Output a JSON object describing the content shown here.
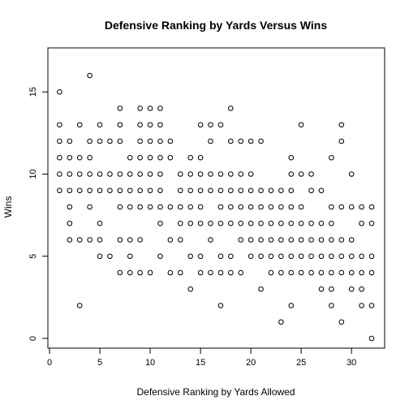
{
  "chart_data": {
    "type": "scatter",
    "title": "Defensive Ranking by Yards Versus Wins",
    "xlabel": "Defensive Ranking by Yards Allowed",
    "ylabel": "Wins",
    "xlim": [
      0,
      32
    ],
    "ylim": [
      0,
      16
    ],
    "x_ticks": [
      0,
      5,
      10,
      15,
      20,
      25,
      30
    ],
    "y_ticks": [
      0,
      5,
      10,
      15
    ],
    "grid": false,
    "points": [
      [
        1,
        15
      ],
      [
        1,
        13
      ],
      [
        1,
        12
      ],
      [
        1,
        11
      ],
      [
        1,
        10
      ],
      [
        1,
        9
      ],
      [
        2,
        12
      ],
      [
        2,
        11
      ],
      [
        2,
        10
      ],
      [
        2,
        9
      ],
      [
        2,
        8
      ],
      [
        2,
        7
      ],
      [
        2,
        6
      ],
      [
        3,
        13
      ],
      [
        3,
        11
      ],
      [
        3,
        10
      ],
      [
        3,
        9
      ],
      [
        3,
        6
      ],
      [
        3,
        2
      ],
      [
        4,
        16
      ],
      [
        4,
        12
      ],
      [
        4,
        11
      ],
      [
        4,
        10
      ],
      [
        4,
        9
      ],
      [
        4,
        8
      ],
      [
        4,
        6
      ],
      [
        5,
        13
      ],
      [
        5,
        12
      ],
      [
        5,
        10
      ],
      [
        5,
        9
      ],
      [
        5,
        7
      ],
      [
        5,
        6
      ],
      [
        5,
        5
      ],
      [
        6,
        12
      ],
      [
        6,
        10
      ],
      [
        6,
        9
      ],
      [
        6,
        5
      ],
      [
        7,
        14
      ],
      [
        7,
        13
      ],
      [
        7,
        12
      ],
      [
        7,
        10
      ],
      [
        7,
        9
      ],
      [
        7,
        8
      ],
      [
        7,
        6
      ],
      [
        7,
        4
      ],
      [
        8,
        11
      ],
      [
        8,
        10
      ],
      [
        8,
        9
      ],
      [
        8,
        8
      ],
      [
        8,
        6
      ],
      [
        8,
        5
      ],
      [
        8,
        4
      ],
      [
        9,
        14
      ],
      [
        9,
        13
      ],
      [
        9,
        12
      ],
      [
        9,
        11
      ],
      [
        9,
        10
      ],
      [
        9,
        9
      ],
      [
        9,
        8
      ],
      [
        9,
        6
      ],
      [
        9,
        4
      ],
      [
        10,
        14
      ],
      [
        10,
        13
      ],
      [
        10,
        12
      ],
      [
        10,
        11
      ],
      [
        10,
        10
      ],
      [
        10,
        9
      ],
      [
        10,
        8
      ],
      [
        10,
        4
      ],
      [
        11,
        14
      ],
      [
        11,
        13
      ],
      [
        11,
        12
      ],
      [
        11,
        11
      ],
      [
        11,
        10
      ],
      [
        11,
        9
      ],
      [
        11,
        8
      ],
      [
        11,
        7
      ],
      [
        11,
        5
      ],
      [
        12,
        12
      ],
      [
        12,
        11
      ],
      [
        12,
        8
      ],
      [
        12,
        6
      ],
      [
        12,
        4
      ],
      [
        13,
        10
      ],
      [
        13,
        9
      ],
      [
        13,
        8
      ],
      [
        13,
        7
      ],
      [
        13,
        6
      ],
      [
        13,
        4
      ],
      [
        14,
        11
      ],
      [
        14,
        10
      ],
      [
        14,
        9
      ],
      [
        14,
        8
      ],
      [
        14,
        7
      ],
      [
        14,
        5
      ],
      [
        14,
        3
      ],
      [
        15,
        13
      ],
      [
        15,
        11
      ],
      [
        15,
        10
      ],
      [
        15,
        9
      ],
      [
        15,
        8
      ],
      [
        15,
        7
      ],
      [
        15,
        5
      ],
      [
        15,
        4
      ],
      [
        16,
        13
      ],
      [
        16,
        12
      ],
      [
        16,
        10
      ],
      [
        16,
        9
      ],
      [
        16,
        7
      ],
      [
        16,
        6
      ],
      [
        16,
        4
      ],
      [
        17,
        13
      ],
      [
        17,
        10
      ],
      [
        17,
        9
      ],
      [
        17,
        8
      ],
      [
        17,
        7
      ],
      [
        17,
        5
      ],
      [
        17,
        4
      ],
      [
        17,
        2
      ],
      [
        18,
        14
      ],
      [
        18,
        12
      ],
      [
        18,
        10
      ],
      [
        18,
        9
      ],
      [
        18,
        8
      ],
      [
        18,
        7
      ],
      [
        18,
        5
      ],
      [
        18,
        4
      ],
      [
        19,
        12
      ],
      [
        19,
        10
      ],
      [
        19,
        9
      ],
      [
        19,
        8
      ],
      [
        19,
        7
      ],
      [
        19,
        6
      ],
      [
        19,
        4
      ],
      [
        20,
        12
      ],
      [
        20,
        10
      ],
      [
        20,
        9
      ],
      [
        20,
        8
      ],
      [
        20,
        7
      ],
      [
        20,
        6
      ],
      [
        20,
        5
      ],
      [
        21,
        12
      ],
      [
        21,
        9
      ],
      [
        21,
        8
      ],
      [
        21,
        7
      ],
      [
        21,
        6
      ],
      [
        21,
        5
      ],
      [
        21,
        3
      ],
      [
        22,
        9
      ],
      [
        22,
        8
      ],
      [
        22,
        7
      ],
      [
        22,
        6
      ],
      [
        22,
        5
      ],
      [
        22,
        4
      ],
      [
        23,
        9
      ],
      [
        23,
        8
      ],
      [
        23,
        7
      ],
      [
        23,
        6
      ],
      [
        23,
        5
      ],
      [
        23,
        4
      ],
      [
        23,
        1
      ],
      [
        24,
        11
      ],
      [
        24,
        10
      ],
      [
        24,
        9
      ],
      [
        24,
        8
      ],
      [
        24,
        7
      ],
      [
        24,
        6
      ],
      [
        24,
        5
      ],
      [
        24,
        4
      ],
      [
        24,
        2
      ],
      [
        25,
        13
      ],
      [
        25,
        10
      ],
      [
        25,
        8
      ],
      [
        25,
        7
      ],
      [
        25,
        6
      ],
      [
        25,
        5
      ],
      [
        25,
        4
      ],
      [
        26,
        10
      ],
      [
        26,
        9
      ],
      [
        26,
        7
      ],
      [
        26,
        6
      ],
      [
        26,
        5
      ],
      [
        26,
        4
      ],
      [
        27,
        9
      ],
      [
        27,
        7
      ],
      [
        27,
        6
      ],
      [
        27,
        5
      ],
      [
        27,
        4
      ],
      [
        27,
        3
      ],
      [
        28,
        11
      ],
      [
        28,
        8
      ],
      [
        28,
        7
      ],
      [
        28,
        6
      ],
      [
        28,
        5
      ],
      [
        28,
        4
      ],
      [
        28,
        3
      ],
      [
        28,
        2
      ],
      [
        29,
        13
      ],
      [
        29,
        12
      ],
      [
        29,
        8
      ],
      [
        29,
        6
      ],
      [
        29,
        5
      ],
      [
        29,
        4
      ],
      [
        29,
        1
      ],
      [
        30,
        10
      ],
      [
        30,
        8
      ],
      [
        30,
        6
      ],
      [
        30,
        5
      ],
      [
        30,
        4
      ],
      [
        30,
        3
      ],
      [
        31,
        8
      ],
      [
        31,
        7
      ],
      [
        31,
        5
      ],
      [
        31,
        4
      ],
      [
        31,
        3
      ],
      [
        31,
        2
      ],
      [
        32,
        8
      ],
      [
        32,
        7
      ],
      [
        32,
        5
      ],
      [
        32,
        4
      ],
      [
        32,
        2
      ],
      [
        32,
        0
      ]
    ]
  }
}
